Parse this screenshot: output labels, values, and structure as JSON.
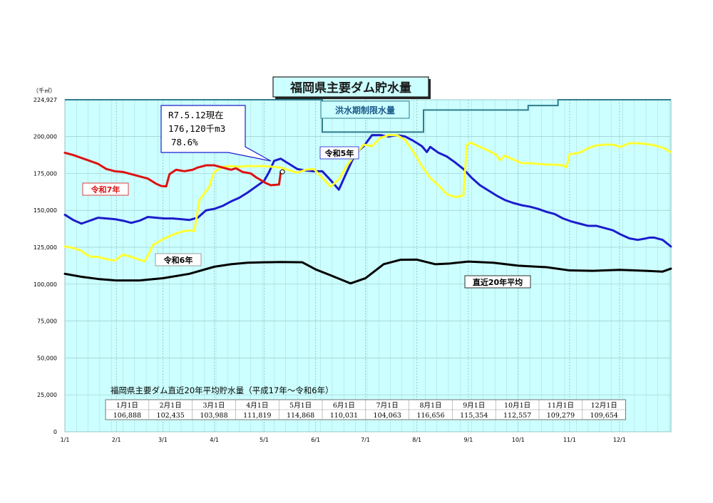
{
  "chart_data": {
    "type": "line",
    "title": "福岡県主要ダム貯水量",
    "y_unit_label": "（千㎥）",
    "ylim": [
      0,
      224927
    ],
    "y_ticks": [
      {
        "value": 0,
        "label": "0"
      },
      {
        "value": 25000,
        "label": "25,000"
      },
      {
        "value": 50000,
        "label": "50,000"
      },
      {
        "value": 75000,
        "label": "75,000"
      },
      {
        "value": 100000,
        "label": "100,000"
      },
      {
        "value": 125000,
        "label": "125,000"
      },
      {
        "value": 150000,
        "label": "150,000"
      },
      {
        "value": 175000,
        "label": "175,000"
      },
      {
        "value": 200000,
        "label": "200,000"
      },
      {
        "value": 224927,
        "label": "224,927"
      }
    ],
    "x_ticks": [
      {
        "day": 0,
        "label": "1/1"
      },
      {
        "day": 31,
        "label": "2/1"
      },
      {
        "day": 59,
        "label": "3/1"
      },
      {
        "day": 90,
        "label": "4/1"
      },
      {
        "day": 120,
        "label": "5/1"
      },
      {
        "day": 151,
        "label": "6/1"
      },
      {
        "day": 181,
        "label": "7/1"
      },
      {
        "day": 212,
        "label": "8/1"
      },
      {
        "day": 243,
        "label": "9/1"
      },
      {
        "day": 273,
        "label": "10/1"
      },
      {
        "day": 304,
        "label": "11/1"
      },
      {
        "day": 334,
        "label": "12/1"
      }
    ],
    "xlim": [
      0,
      365
    ],
    "grid": true,
    "flood_limit": {
      "label": "洪水期制限水量",
      "color": "#2e7d8c",
      "points": [
        [
          0,
          224927
        ],
        [
          155,
          224927
        ],
        [
          155,
          203000
        ],
        [
          216,
          203000
        ],
        [
          216,
          218000
        ],
        [
          279,
          218000
        ],
        [
          279,
          221000
        ],
        [
          297,
          221000
        ],
        [
          297,
          224927
        ],
        [
          365,
          224927
        ]
      ]
    },
    "series": [
      {
        "name": "令和7年",
        "color": "#dd1111",
        "x": [
          0,
          5,
          10,
          15,
          20,
          25,
          30,
          35,
          40,
          45,
          50,
          55,
          58,
          61,
          63,
          67,
          72,
          77,
          80,
          85,
          90,
          95,
          100,
          103,
          107,
          112,
          115,
          118,
          121,
          124,
          129,
          130
        ],
        "values": [
          189000,
          187500,
          185500,
          183500,
          181500,
          178000,
          176500,
          176000,
          174500,
          173000,
          171500,
          168000,
          166500,
          166200,
          174500,
          177500,
          176500,
          177500,
          179000,
          180500,
          180500,
          179000,
          177500,
          178500,
          176000,
          175000,
          172500,
          170500,
          168500,
          167000,
          167500,
          176120
        ]
      },
      {
        "name": "令和6年",
        "color": "#ffff33",
        "x": [
          0,
          5,
          10,
          13,
          16,
          20,
          23,
          27,
          30,
          35,
          40,
          45,
          48,
          51,
          53,
          56,
          60,
          65,
          70,
          75,
          78,
          81,
          85,
          87,
          88,
          90,
          95,
          100,
          105,
          110,
          115,
          120,
          125,
          130,
          140,
          145,
          150,
          160,
          165,
          170,
          175,
          180,
          185,
          190,
          195,
          200,
          205,
          210,
          215,
          220,
          225,
          230,
          235,
          240,
          242,
          244,
          250,
          255,
          260,
          262,
          265,
          270,
          275,
          280,
          285,
          290,
          295,
          300,
          302,
          304,
          310,
          315,
          320,
          325,
          330,
          335,
          340,
          345,
          350,
          355,
          360,
          365
        ],
        "values": [
          125500,
          124500,
          122500,
          120000,
          118500,
          118500,
          117500,
          116500,
          116000,
          120000,
          118500,
          116500,
          115500,
          121500,
          126500,
          128500,
          131000,
          133500,
          135500,
          136500,
          136000,
          157000,
          163000,
          166000,
          170000,
          176000,
          179500,
          180000,
          179500,
          180000,
          180000,
          180000,
          179500,
          179000,
          175500,
          177500,
          178000,
          166000,
          171000,
          180500,
          188000,
          194500,
          193500,
          199000,
          201000,
          201000,
          197500,
          189500,
          180000,
          172000,
          167000,
          161000,
          159000,
          160000,
          194000,
          196000,
          193000,
          190500,
          187500,
          184000,
          187000,
          184500,
          182000,
          182000,
          181500,
          181000,
          181000,
          180500,
          179000,
          188000,
          189000,
          192000,
          194000,
          194500,
          194500,
          193000,
          195500,
          195500,
          195000,
          194000,
          192500,
          189500
        ]
      },
      {
        "name": "令和5年",
        "color": "#1c1ccc",
        "x": [
          0,
          5,
          10,
          15,
          20,
          25,
          30,
          35,
          40,
          45,
          50,
          55,
          60,
          65,
          70,
          75,
          80,
          85,
          90,
          95,
          100,
          105,
          110,
          115,
          120,
          123,
          126,
          130,
          135,
          140,
          145,
          150,
          155,
          160,
          165,
          170,
          175,
          180,
          185,
          190,
          195,
          200,
          205,
          210,
          215,
          218,
          220,
          225,
          230,
          235,
          240,
          245,
          250,
          255,
          260,
          265,
          270,
          275,
          280,
          285,
          290,
          295,
          300,
          305,
          310,
          315,
          320,
          325,
          330,
          335,
          340,
          345,
          350,
          352,
          355,
          360,
          365
        ],
        "values": [
          147000,
          143500,
          141000,
          143000,
          145000,
          144500,
          144000,
          143000,
          141500,
          143000,
          145500,
          145000,
          144500,
          144500,
          144000,
          143500,
          145000,
          150000,
          151000,
          153000,
          156000,
          158500,
          162000,
          166000,
          170000,
          176000,
          183500,
          185000,
          181500,
          178000,
          177000,
          176500,
          176500,
          170500,
          164000,
          176500,
          188500,
          193500,
          201000,
          201000,
          200000,
          201000,
          200000,
          197000,
          193500,
          189500,
          193000,
          189000,
          186500,
          182500,
          178000,
          172000,
          167000,
          163500,
          160000,
          157000,
          155000,
          153500,
          152500,
          151000,
          149000,
          147500,
          144500,
          142500,
          141000,
          139500,
          139500,
          138000,
          136500,
          133500,
          131000,
          130000,
          131000,
          131500,
          131500,
          130000,
          125500
        ]
      },
      {
        "name": "直近20年平均",
        "color": "#000000",
        "x": [
          0,
          10,
          20,
          31,
          45,
          59,
          75,
          90,
          100,
          110,
          120,
          130,
          143,
          151,
          160,
          172,
          181,
          192,
          202,
          212,
          223,
          232,
          243,
          258,
          273,
          290,
          304,
          318,
          334,
          350,
          360,
          365
        ],
        "values": [
          107000,
          105000,
          103500,
          102500,
          102500,
          104000,
          107000,
          111800,
          113500,
          114500,
          114800,
          115000,
          114800,
          110000,
          106000,
          100500,
          104000,
          113500,
          116500,
          116600,
          113500,
          114000,
          115300,
          114500,
          112500,
          111500,
          109300,
          109000,
          109700,
          109000,
          108500,
          110500
        ]
      }
    ],
    "avg20_table": {
      "caption": "福岡県主要ダム直近20年平均貯水量（平成17年～令和6年）",
      "months": [
        "1月1日",
        "2月1日",
        "3月1日",
        "4月1日",
        "5月1日",
        "6月1日",
        "7月1日",
        "8月1日",
        "9月1日",
        "10月1日",
        "11月1日",
        "12月1日"
      ],
      "values": [
        "106,888",
        "102,435",
        "103,988",
        "111,819",
        "114,868",
        "110,031",
        "104,063",
        "116,656",
        "115,354",
        "112,557",
        "109,279",
        "109,654"
      ]
    },
    "callout": {
      "line1": "R7.5.12現在",
      "line2": "176,120千m3",
      "line3": "78.6%",
      "point": {
        "day": 131,
        "value": 176120
      }
    },
    "colors": {
      "plot_background": "#ccffff",
      "grid": "#9ccccc",
      "title_box": "#ccffff",
      "flood_box": "#ccffff"
    }
  }
}
